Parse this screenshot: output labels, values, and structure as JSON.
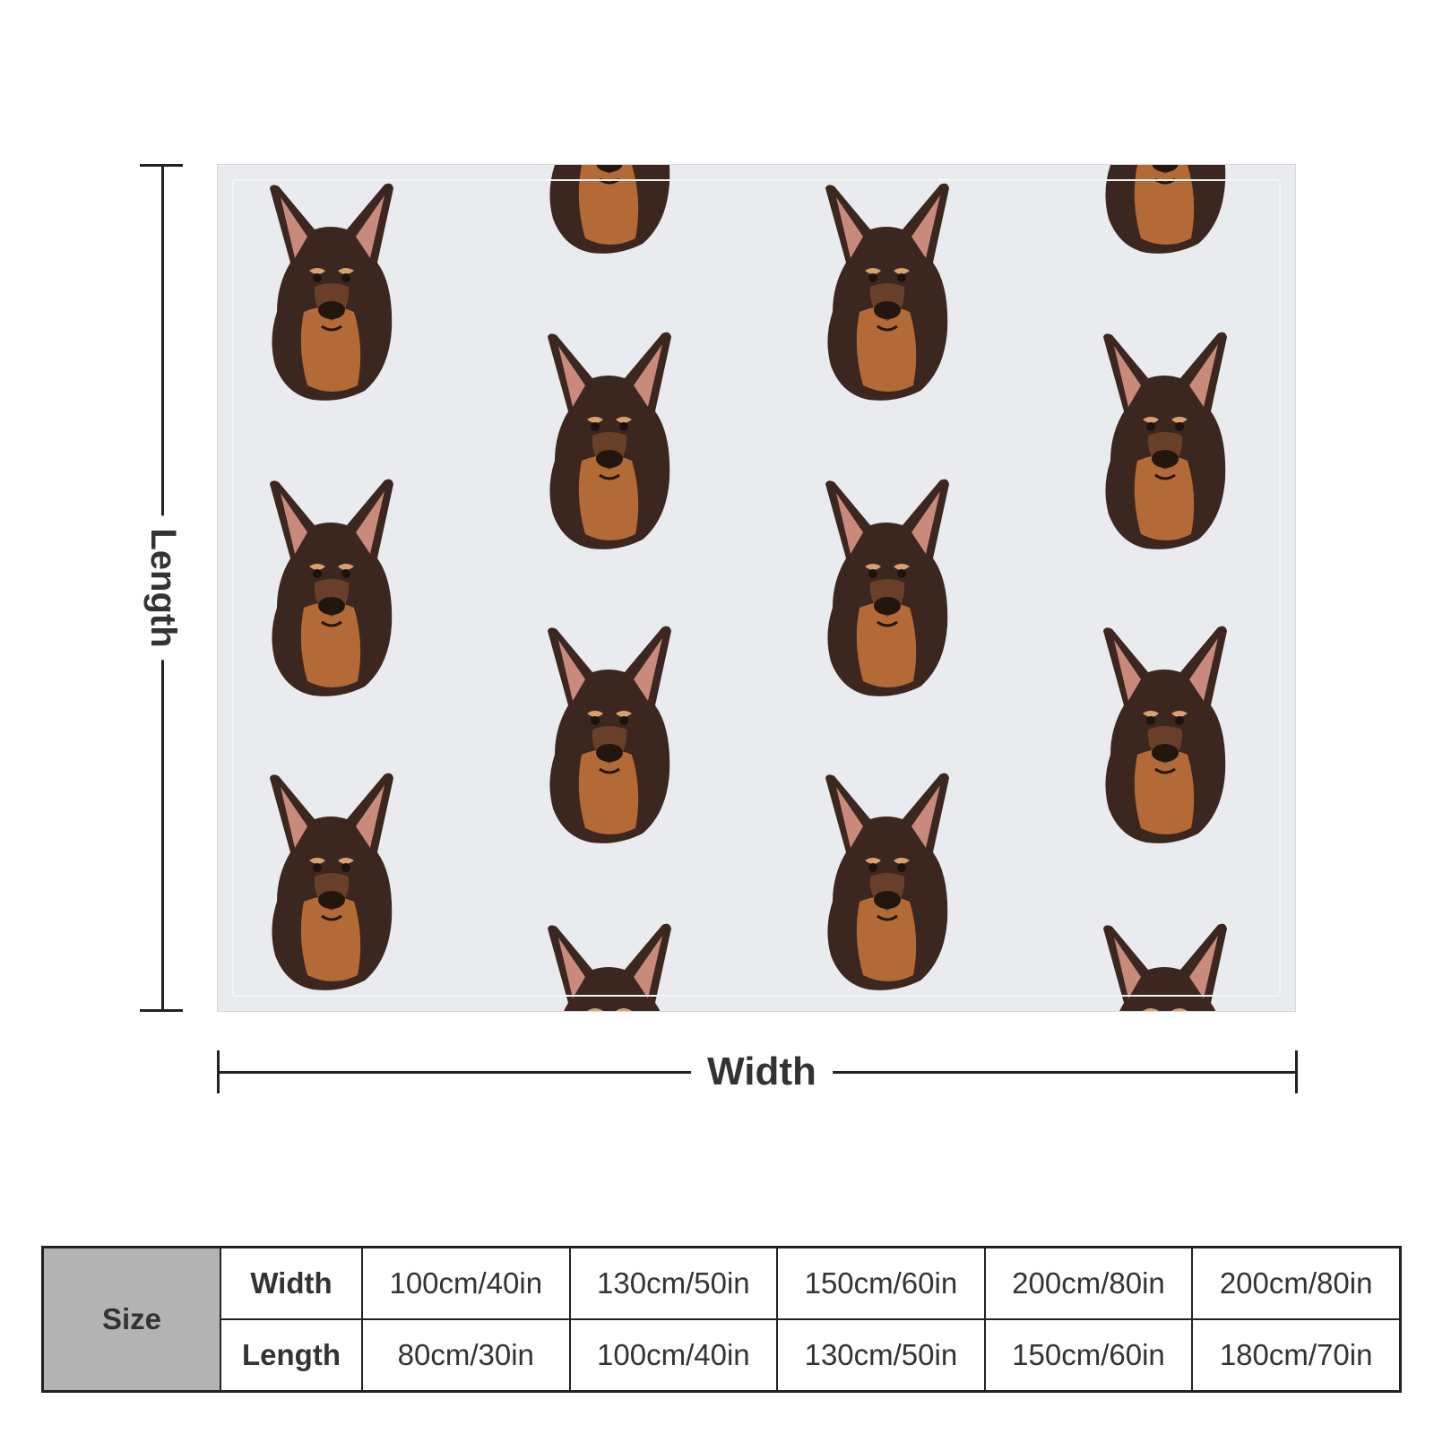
{
  "dimensions": {
    "length_label": "Length",
    "width_label": "Width"
  },
  "size_table": {
    "header": "Size",
    "rows": [
      {
        "label": "Width",
        "values": [
          "100cm/40in",
          "130cm/50in",
          "150cm/60in",
          "200cm/80in",
          "200cm/80in"
        ]
      },
      {
        "label": "Length",
        "values": [
          "80cm/30in",
          "100cm/40in",
          "130cm/50in",
          "150cm/60in",
          "180cm/70in"
        ]
      }
    ]
  },
  "colors": {
    "blanket_background": "#e9ebef",
    "dog_fur_dark": "#3b2620",
    "dog_fur_tan": "#b46a37",
    "size_header_fill": "#b3b3b3"
  },
  "icons": [
    "dog-head-icon"
  ]
}
